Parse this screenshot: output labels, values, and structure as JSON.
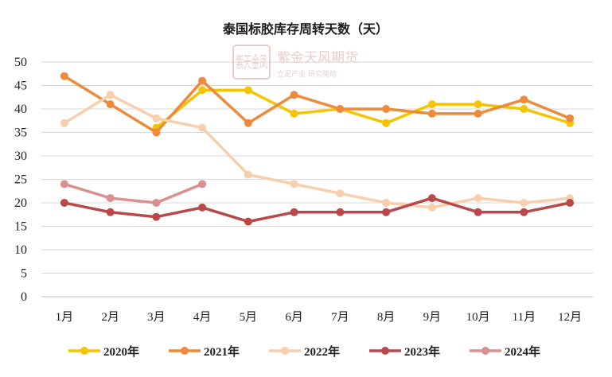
{
  "chart_data": {
    "type": "line",
    "title": "泰国标胶库存周转天数（天）",
    "categories": [
      "1月",
      "2月",
      "3月",
      "4月",
      "5月",
      "6月",
      "7月",
      "8月",
      "9月",
      "10月",
      "11月",
      "12月"
    ],
    "ylim": [
      0,
      50
    ],
    "yticks": [
      0,
      5,
      10,
      15,
      20,
      25,
      30,
      35,
      40,
      45,
      50
    ],
    "grid": true,
    "legend_position": "bottom",
    "series": [
      {
        "name": "2020年",
        "color": "#f5c400",
        "values": [
          null,
          null,
          36,
          44,
          44,
          39,
          40,
          37,
          41,
          41,
          40,
          37
        ]
      },
      {
        "name": "2021年",
        "color": "#ee8a3c",
        "values": [
          47,
          41,
          35,
          46,
          37,
          43,
          40,
          40,
          39,
          39,
          42,
          38
        ]
      },
      {
        "name": "2022年",
        "color": "#f8cfac",
        "values": [
          37,
          43,
          38,
          36,
          26,
          24,
          22,
          20,
          19,
          21,
          20,
          21
        ]
      },
      {
        "name": "2023年",
        "color": "#b8484a",
        "values": [
          20,
          18,
          17,
          19,
          16,
          18,
          18,
          18,
          21,
          18,
          18,
          20
        ]
      },
      {
        "name": "2024年",
        "color": "#d9908e",
        "values": [
          24,
          21,
          20,
          24,
          null,
          null,
          null,
          null,
          null,
          null,
          null,
          null
        ]
      }
    ]
  },
  "watermark": {
    "logo_chars": "紫天金凤",
    "company": "紫金天风期货",
    "slogan": "立足产业 研究驱动"
  }
}
